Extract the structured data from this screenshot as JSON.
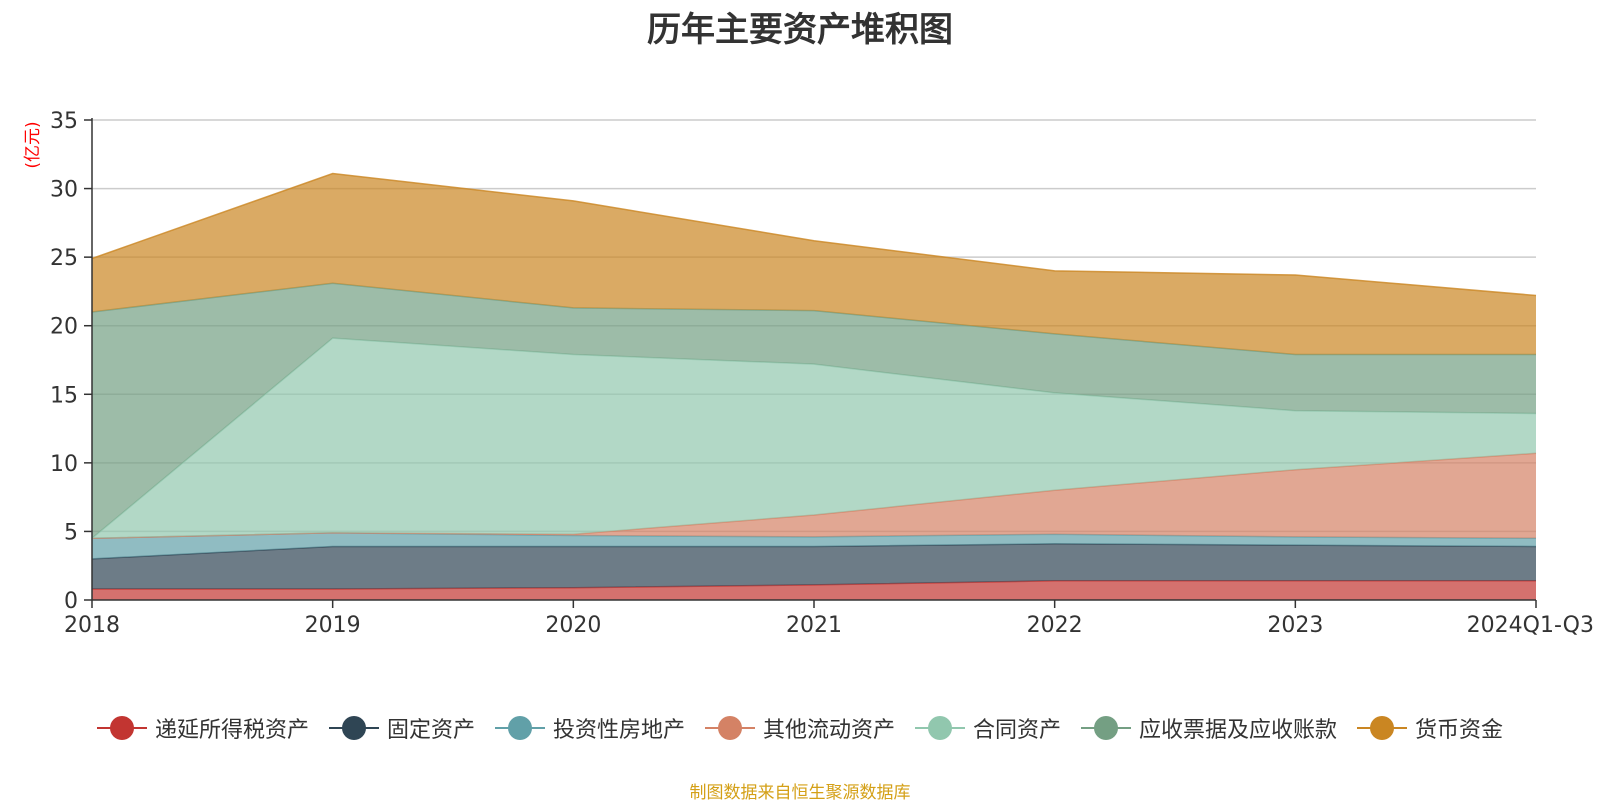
{
  "chart_data": {
    "type": "area",
    "stacked": true,
    "title": "历年主要资产堆积图",
    "ylabel": "(亿元)",
    "xlabel": "",
    "categories": [
      "2018",
      "2019",
      "2020",
      "2021",
      "2022",
      "2023",
      "2024Q1-Q3"
    ],
    "ylim": [
      0,
      35
    ],
    "yticks": [
      0,
      5,
      10,
      15,
      20,
      25,
      30,
      35
    ],
    "grid": true,
    "legend_position": "bottom",
    "series": [
      {
        "name": "递延所得税资产",
        "color": "#c23531",
        "values": [
          0.8,
          0.8,
          0.9,
          1.1,
          1.4,
          1.4,
          1.4
        ]
      },
      {
        "name": "固定资产",
        "color": "#2f4554",
        "values": [
          2.2,
          3.1,
          3.0,
          2.8,
          2.7,
          2.6,
          2.5
        ]
      },
      {
        "name": "投资性房地产",
        "color": "#61a0a8",
        "values": [
          1.5,
          1.0,
          0.8,
          0.7,
          0.7,
          0.6,
          0.6
        ]
      },
      {
        "name": "其他流动资产",
        "color": "#d48265",
        "values": [
          0.0,
          0.0,
          0.1,
          1.6,
          3.2,
          4.9,
          6.2
        ]
      },
      {
        "name": "合同资产",
        "color": "#91c7ae",
        "values": [
          0.0,
          14.2,
          13.1,
          11.0,
          7.1,
          4.3,
          2.9
        ]
      },
      {
        "name": "应收票据及应收账款",
        "color": "#749f83",
        "values": [
          16.5,
          4.0,
          3.4,
          3.9,
          4.3,
          4.1,
          4.3
        ]
      },
      {
        "name": "货币资金",
        "color": "#ca8622",
        "values": [
          3.9,
          8.0,
          7.8,
          5.1,
          4.6,
          5.8,
          4.3
        ]
      }
    ],
    "source_note": "制图数据来自恒生聚源数据库"
  },
  "colors": {
    "axis": "#333333",
    "grid": "#cccccc",
    "ylabel": "#ff0000",
    "note": "#d4a017"
  }
}
